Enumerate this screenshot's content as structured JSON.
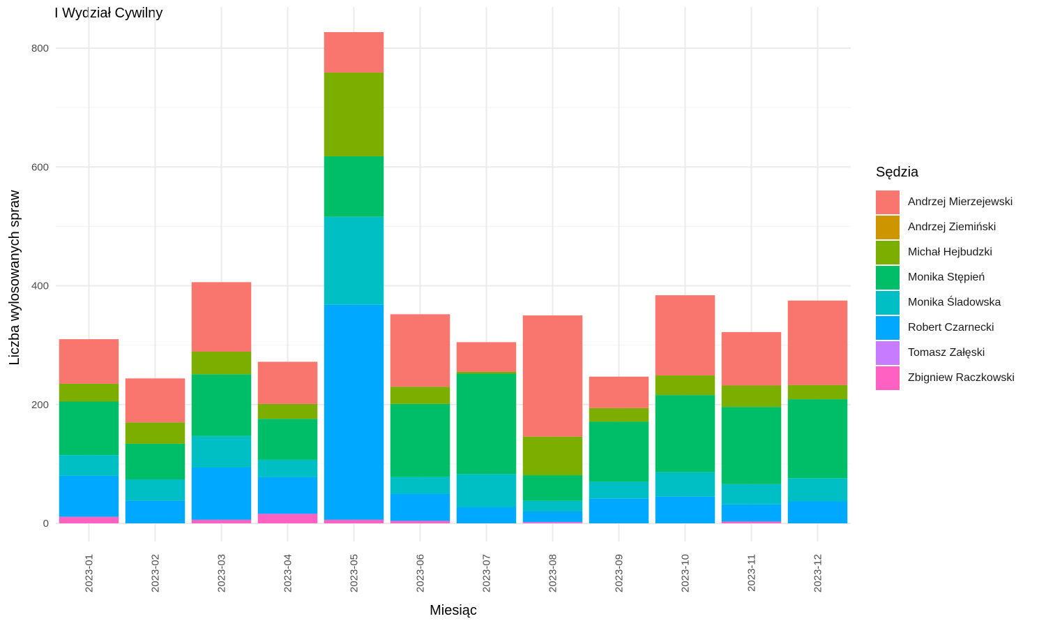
{
  "chart_data": {
    "type": "bar",
    "stacked": true,
    "title": "I Wydział Cywilny",
    "xlabel": "Miesiąc",
    "ylabel": "Liczba wylosowanych spraw",
    "ylim": [
      0,
      830
    ],
    "yticks": [
      0,
      200,
      400,
      600,
      800
    ],
    "grid": true,
    "legend_position": "right",
    "legend_title": "Sędzia",
    "categories": [
      "2023-01",
      "2023-02",
      "2023-03",
      "2023-04",
      "2023-05",
      "2023-06",
      "2023-07",
      "2023-08",
      "2023-09",
      "2023-10",
      "2023-11",
      "2023-12"
    ],
    "series": [
      {
        "name": "Zbigniew Raczkowski",
        "color": "#FF61C3",
        "values": [
          11,
          0,
          6,
          16,
          6,
          4,
          0,
          2,
          0,
          0,
          3,
          0
        ]
      },
      {
        "name": "Tomasz Załęski",
        "color": "#C77CFF",
        "values": [
          0,
          0,
          0,
          0,
          0,
          0,
          0,
          0,
          0,
          0,
          0,
          0
        ]
      },
      {
        "name": "Robert Czarnecki",
        "color": "#00A9FF",
        "values": [
          69,
          38,
          88,
          62,
          362,
          46,
          27,
          18,
          42,
          45,
          29,
          37
        ]
      },
      {
        "name": "Monika Śladowska",
        "color": "#00BFC4",
        "values": [
          35,
          36,
          53,
          29,
          148,
          28,
          56,
          18,
          28,
          41,
          34,
          39
        ]
      },
      {
        "name": "Monika Stępień",
        "color": "#00BE67",
        "values": [
          90,
          60,
          104,
          69,
          102,
          123,
          169,
          43,
          101,
          130,
          130,
          133
        ]
      },
      {
        "name": "Michał Hejbudzki",
        "color": "#7CAE00",
        "values": [
          30,
          36,
          38,
          25,
          141,
          29,
          3,
          65,
          23,
          33,
          36,
          24
        ]
      },
      {
        "name": "Andrzej Ziemiński",
        "color": "#CD9600",
        "values": [
          0,
          0,
          0,
          0,
          0,
          0,
          0,
          0,
          0,
          0,
          0,
          0
        ]
      },
      {
        "name": "Andrzej Mierzejewski",
        "color": "#F8766D",
        "values": [
          75,
          74,
          117,
          71,
          68,
          122,
          50,
          204,
          53,
          135,
          90,
          142
        ]
      }
    ]
  },
  "legend": {
    "title": "Sędzia",
    "items": [
      {
        "label": "Andrzej Mierzejewski",
        "color": "#F8766D"
      },
      {
        "label": "Andrzej Ziemiński",
        "color": "#CD9600"
      },
      {
        "label": "Michał Hejbudzki",
        "color": "#7CAE00"
      },
      {
        "label": "Monika Stępień",
        "color": "#00BE67"
      },
      {
        "label": "Monika Śladowska",
        "color": "#00BFC4"
      },
      {
        "label": "Robert Czarnecki",
        "color": "#00A9FF"
      },
      {
        "label": "Tomasz Załęski",
        "color": "#C77CFF"
      },
      {
        "label": "Zbigniew Raczkowski",
        "color": "#FF61C3"
      }
    ]
  }
}
